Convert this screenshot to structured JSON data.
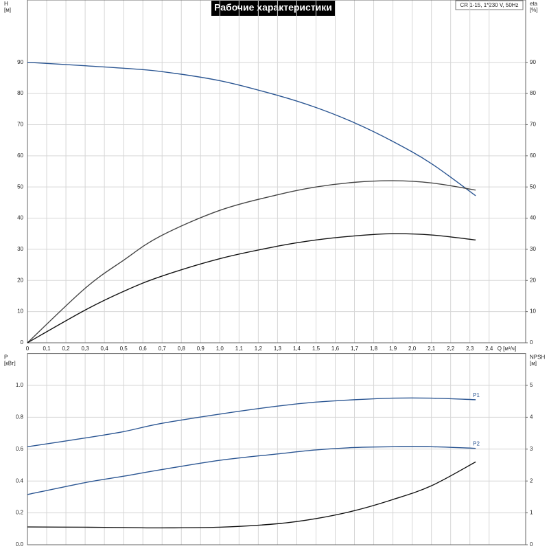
{
  "chart_data": [
    {
      "type": "line",
      "title": "Рабочие характеристики",
      "subtitle": "CR 1-15, 1*230 V, 50Hz",
      "xlabel": "Q [м³/ч]",
      "ylabel": "H",
      "yunit": "[м]",
      "y2label": "eta",
      "y2unit": "[%]",
      "grid": true,
      "xlim": [
        0,
        2.59
      ],
      "xticks": [
        0,
        {
          "value": 0.1,
          "label": "0,1"
        },
        {
          "value": 0.2,
          "label": "0,2"
        },
        {
          "value": 0.3,
          "label": "0,3"
        },
        {
          "value": 0.4,
          "label": "0,4"
        },
        {
          "value": 0.5,
          "label": "0,5"
        },
        {
          "value": 0.6,
          "label": "0,6"
        },
        {
          "value": 0.7,
          "label": "0,7"
        },
        {
          "value": 0.8,
          "label": "0,8"
        },
        {
          "value": 0.9,
          "label": "0,9"
        },
        {
          "value": 1,
          "label": "1,0"
        },
        {
          "value": 1.1,
          "label": "1,1"
        },
        {
          "value": 1.2,
          "label": "1,2"
        },
        {
          "value": 1.3,
          "label": "1,3"
        },
        {
          "value": 1.4,
          "label": "1,4"
        },
        {
          "value": 1.5,
          "label": "1,5"
        },
        {
          "value": 1.6,
          "label": "1,6"
        },
        {
          "value": 1.7,
          "label": "1,7"
        },
        {
          "value": 1.8,
          "label": "1,8"
        },
        {
          "value": 1.9,
          "label": "1,9"
        },
        {
          "value": 2,
          "label": "2,0"
        },
        {
          "value": 2.1,
          "label": "2,1"
        },
        {
          "value": 2.2,
          "label": "2,2"
        },
        {
          "value": 2.3,
          "label": "2,3"
        },
        {
          "value": 2.4,
          "label": "2,4"
        }
      ],
      "ylim": [
        0,
        110
      ],
      "yticks": [
        0,
        10,
        20,
        30,
        40,
        50,
        60,
        70,
        80,
        90
      ],
      "y2lim": [
        0,
        110
      ],
      "y2ticks": [
        0,
        10,
        20,
        30,
        40,
        50,
        60,
        70,
        80,
        90
      ],
      "x": [
        0,
        0.3,
        0.5,
        0.69,
        1.0,
        1.3,
        1.5,
        1.7,
        1.9,
        2.1,
        2.33
      ],
      "series": [
        {
          "color": "#2a5592",
          "values": [
            90,
            88.9,
            88.1,
            87.1,
            84.1,
            79.4,
            75.5,
            70.6,
            64.6,
            57.5,
            47.2
          ]
        },
        {
          "color": "#444444",
          "axis": "y2",
          "values": [
            0,
            17.5,
            26.5,
            34.2,
            42.5,
            47.5,
            50,
            51.5,
            52,
            51.3,
            49
          ]
        },
        {
          "color": "#111111",
          "axis": "y2",
          "values": [
            0,
            10.5,
            16.5,
            21.2,
            27,
            31,
            33,
            34.3,
            35,
            34.6,
            33
          ]
        }
      ]
    },
    {
      "type": "line",
      "ylabel": "P",
      "yunit": "[кВт]",
      "y2label": "NPSH",
      "y2unit": "[м]",
      "grid": true,
      "xlim": [
        0,
        2.59
      ],
      "xgrid": [
        0,
        0.1,
        0.2,
        0.3,
        0.4,
        0.5,
        0.6,
        0.7,
        0.8,
        0.9,
        1,
        1.1,
        1.2,
        1.3,
        1.4,
        1.5,
        1.6,
        1.7,
        1.8,
        1.9,
        2,
        2.1,
        2.2,
        2.3,
        2.4
      ],
      "ylim": [
        0,
        1.2
      ],
      "yticks": [
        {
          "value": 0,
          "label": "0.0"
        },
        0.2,
        0.4,
        0.6,
        0.8,
        {
          "value": 1,
          "label": "1.0"
        }
      ],
      "y2lim": [
        0,
        6
      ],
      "y2ticks": [
        0,
        1,
        2,
        3,
        4,
        5
      ],
      "x": [
        0,
        0.3,
        0.5,
        0.69,
        1.0,
        1.3,
        1.5,
        1.7,
        1.9,
        2.1,
        2.33
      ],
      "series": [
        {
          "name": "P1",
          "color": "#2a5592",
          "values": [
            0.615,
            0.67,
            0.71,
            0.76,
            0.82,
            0.87,
            0.895,
            0.91,
            0.92,
            0.92,
            0.91
          ]
        },
        {
          "name": "P2",
          "color": "#2a5592",
          "values": [
            0.315,
            0.39,
            0.43,
            0.47,
            0.53,
            0.57,
            0.595,
            0.61,
            0.615,
            0.615,
            0.605
          ]
        },
        {
          "color": "#111111",
          "axis": "y2",
          "values": [
            0.56,
            0.55,
            0.54,
            0.53,
            0.55,
            0.66,
            0.82,
            1.07,
            1.42,
            1.85,
            2.6
          ]
        }
      ]
    }
  ]
}
